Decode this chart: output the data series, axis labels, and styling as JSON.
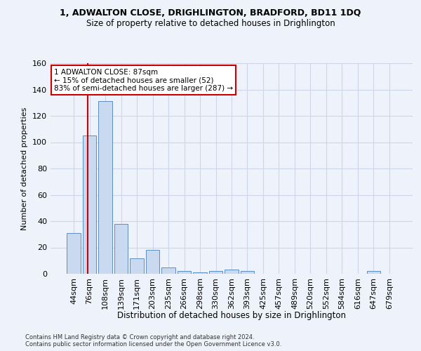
{
  "title1": "1, ADWALTON CLOSE, DRIGHLINGTON, BRADFORD, BD11 1DQ",
  "title2": "Size of property relative to detached houses in Drighlington",
  "xlabel": "Distribution of detached houses by size in Drighlington",
  "ylabel": "Number of detached properties",
  "footnote": "Contains HM Land Registry data © Crown copyright and database right 2024.\nContains public sector information licensed under the Open Government Licence v3.0.",
  "bar_labels": [
    "44sqm",
    "76sqm",
    "108sqm",
    "139sqm",
    "171sqm",
    "203sqm",
    "235sqm",
    "266sqm",
    "298sqm",
    "330sqm",
    "362sqm",
    "393sqm",
    "425sqm",
    "457sqm",
    "489sqm",
    "520sqm",
    "552sqm",
    "584sqm",
    "616sqm",
    "647sqm",
    "679sqm"
  ],
  "bar_values": [
    31,
    105,
    131,
    38,
    12,
    18,
    5,
    2,
    1,
    2,
    3,
    2,
    0,
    0,
    0,
    0,
    0,
    0,
    0,
    2,
    0
  ],
  "bar_color": "#c9d9f0",
  "bar_edge_color": "#5b8ec4",
  "grid_color": "#ccd6e8",
  "background_color": "#eef2fa",
  "subject_line_color": "#cc0000",
  "annotation_text": "1 ADWALTON CLOSE: 87sqm\n← 15% of detached houses are smaller (52)\n83% of semi-detached houses are larger (287) →",
  "annotation_box_color": "#ffffff",
  "annotation_box_edge": "#cc0000",
  "ylim": [
    0,
    160
  ],
  "yticks": [
    0,
    20,
    40,
    60,
    80,
    100,
    120,
    140,
    160
  ]
}
